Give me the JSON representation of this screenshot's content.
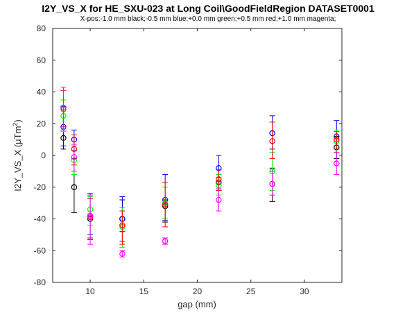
{
  "chart_data": {
    "type": "scatter",
    "title": "I2Y_VS_X for HE_SXU-023 at Long Coil\\GoodFieldRegion DATASET0001",
    "subtitle": "X-pos:-1.0 mm black;-0.5 mm blue;+0.0 mm green;+0.5 mm red;+1.0 mm magenta;",
    "xlabel": "gap (mm)",
    "ylabel_main": "I2Y_VS_X (μTm",
    "ylabel_sup": "2",
    "ylabel_close": ")",
    "xlim": [
      6.5,
      33.5
    ],
    "ylim": [
      -80,
      80
    ],
    "xticks": [
      10,
      15,
      20,
      25,
      30
    ],
    "yticks": [
      -80,
      -60,
      -40,
      -20,
      0,
      20,
      40,
      60,
      80
    ],
    "grid": false,
    "series": [
      {
        "color": "#000000",
        "points": [
          {
            "x": 7.5,
            "y": 11,
            "lo": 4,
            "hi": 31
          },
          {
            "x": 8.5,
            "y": -20,
            "lo": -36,
            "hi": -2
          },
          {
            "x": 10,
            "y": -40,
            "lo": -53,
            "hi": -27
          },
          {
            "x": 13,
            "y": -40,
            "lo": -48,
            "hi": -28
          },
          {
            "x": 17,
            "y": -32,
            "lo": -42,
            "hi": -28
          },
          {
            "x": 22,
            "y": -17,
            "lo": -22,
            "hi": -12
          },
          {
            "x": 27,
            "y": -18,
            "lo": -29,
            "hi": -8
          },
          {
            "x": 33,
            "y": 5,
            "lo": -2,
            "hi": 12
          }
        ]
      },
      {
        "color": "#0000ff",
        "points": [
          {
            "x": 7.5,
            "y": 18,
            "lo": 6,
            "hi": 31
          },
          {
            "x": 8.5,
            "y": 10,
            "lo": 3,
            "hi": 16
          },
          {
            "x": 10,
            "y": -38,
            "lo": -50,
            "hi": -24
          },
          {
            "x": 13,
            "y": -40,
            "lo": -54,
            "hi": -26
          },
          {
            "x": 17,
            "y": -28,
            "lo": -41,
            "hi": -12
          },
          {
            "x": 22,
            "y": -8,
            "lo": -14,
            "hi": 0
          },
          {
            "x": 27,
            "y": 14,
            "lo": 4,
            "hi": 25
          },
          {
            "x": 33,
            "y": 12,
            "lo": 2,
            "hi": 22
          }
        ]
      },
      {
        "color": "#00ff00",
        "points": [
          {
            "x": 7.5,
            "y": 25,
            "lo": 15,
            "hi": 35
          },
          {
            "x": 8.5,
            "y": -3,
            "lo": -12,
            "hi": 6
          },
          {
            "x": 10,
            "y": -34,
            "lo": -44,
            "hi": -26
          },
          {
            "x": 13,
            "y": -45,
            "lo": -58,
            "hi": -33
          },
          {
            "x": 17,
            "y": -30,
            "lo": -40,
            "hi": -20
          },
          {
            "x": 22,
            "y": -19,
            "lo": -25,
            "hi": -12
          },
          {
            "x": 27,
            "y": -10,
            "lo": -22,
            "hi": 2
          },
          {
            "x": 33,
            "y": 9,
            "lo": 2,
            "hi": 16
          }
        ]
      },
      {
        "color": "#ff0000",
        "points": [
          {
            "x": 7.5,
            "y": 30,
            "lo": 18,
            "hi": 41
          },
          {
            "x": 8.5,
            "y": 4,
            "lo": -6,
            "hi": 13
          },
          {
            "x": 10,
            "y": -39,
            "lo": -52,
            "hi": -27
          },
          {
            "x": 13,
            "y": -44,
            "lo": -56,
            "hi": -35
          },
          {
            "x": 17,
            "y": -31,
            "lo": -45,
            "hi": -17
          },
          {
            "x": 22,
            "y": -15,
            "lo": -22,
            "hi": -9
          },
          {
            "x": 27,
            "y": 9,
            "lo": -2,
            "hi": 21
          },
          {
            "x": 33,
            "y": 10,
            "lo": 4,
            "hi": 15
          }
        ]
      },
      {
        "color": "#ff00ff",
        "points": [
          {
            "x": 7.5,
            "y": 29,
            "lo": 16,
            "hi": 43
          },
          {
            "x": 8.5,
            "y": -1,
            "lo": -10,
            "hi": 7
          },
          {
            "x": 10,
            "y": -38,
            "lo": -56,
            "hi": -25
          },
          {
            "x": 13,
            "y": -62,
            "lo": -64,
            "hi": -60
          },
          {
            "x": 17,
            "y": -54,
            "lo": -56,
            "hi": -52
          },
          {
            "x": 22,
            "y": -28,
            "lo": -35,
            "hi": -21
          },
          {
            "x": 27,
            "y": -18,
            "lo": -25,
            "hi": -10
          },
          {
            "x": 33,
            "y": -5,
            "lo": -12,
            "hi": 2
          }
        ]
      }
    ]
  }
}
